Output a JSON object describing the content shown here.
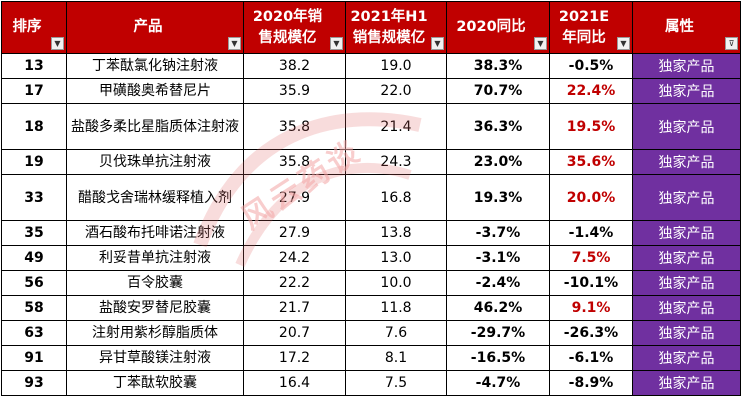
{
  "colors": {
    "header_bg": "#c00000",
    "attr_bg": "#7030a0",
    "negative_red": "#c00000"
  },
  "headers": {
    "rank": "排序",
    "product": "产品",
    "sales2020": "2020年销售规模亿",
    "sales2021h1": "2021年H1销售规模亿",
    "yoy2020": "2020同比",
    "yoy2021e": "2021E年同比",
    "attribute": "属性"
  },
  "watermark": {
    "text": "风云药谈"
  },
  "rows": [
    {
      "rank": "13",
      "product": "丁苯酞氯化钠注射液",
      "sales2020": "38.2",
      "sales2021h1": "19.0",
      "yoy2020": "38.3%",
      "yoy2021e": "-0.5%",
      "attribute": "独家产品"
    },
    {
      "rank": "17",
      "product": "甲磺酸奥希替尼片",
      "sales2020": "35.9",
      "sales2021h1": "22.0",
      "yoy2020": "70.7%",
      "yoy2021e": "22.4%",
      "attribute": "独家产品"
    },
    {
      "rank": "18",
      "product": "盐酸多柔比星脂质体注射液",
      "sales2020": "35.8",
      "sales2021h1": "21.4",
      "yoy2020": "36.3%",
      "yoy2021e": "19.5%",
      "attribute": "独家产品"
    },
    {
      "rank": "19",
      "product": "贝伐珠单抗注射液",
      "sales2020": "35.8",
      "sales2021h1": "24.3",
      "yoy2020": "23.0%",
      "yoy2021e": "35.6%",
      "attribute": "独家产品"
    },
    {
      "rank": "33",
      "product": "醋酸戈舍瑞林缓释植入剂",
      "sales2020": "27.9",
      "sales2021h1": "16.8",
      "yoy2020": "19.3%",
      "yoy2021e": "20.0%",
      "attribute": "独家产品"
    },
    {
      "rank": "35",
      "product": "酒石酸布托啡诺注射液",
      "sales2020": "27.9",
      "sales2021h1": "13.8",
      "yoy2020": "-3.7%",
      "yoy2021e": "-1.4%",
      "attribute": "独家产品"
    },
    {
      "rank": "49",
      "product": "利妥昔单抗注射液",
      "sales2020": "24.2",
      "sales2021h1": "13.0",
      "yoy2020": "-3.1%",
      "yoy2021e": "7.5%",
      "attribute": "独家产品"
    },
    {
      "rank": "56",
      "product": "百令胶囊",
      "sales2020": "22.2",
      "sales2021h1": "10.0",
      "yoy2020": "-2.4%",
      "yoy2021e": "-10.1%",
      "attribute": "独家产品"
    },
    {
      "rank": "58",
      "product": "盐酸安罗替尼胶囊",
      "sales2020": "21.7",
      "sales2021h1": "11.8",
      "yoy2020": "46.2%",
      "yoy2021e": "9.1%",
      "attribute": "独家产品"
    },
    {
      "rank": "63",
      "product": "注射用紫杉醇脂质体",
      "sales2020": "20.7",
      "sales2021h1": "7.6",
      "yoy2020": "-29.7%",
      "yoy2021e": "-26.3%",
      "attribute": "独家产品"
    },
    {
      "rank": "91",
      "product": "异甘草酸镁注射液",
      "sales2020": "17.2",
      "sales2021h1": "8.1",
      "yoy2020": "-16.5%",
      "yoy2021e": "-6.1%",
      "attribute": "独家产品"
    },
    {
      "rank": "93",
      "product": "丁苯酞软胶囊",
      "sales2020": "16.4",
      "sales2021h1": "7.5",
      "yoy2020": "-4.7%",
      "yoy2021e": "-8.9%",
      "attribute": "独家产品"
    }
  ]
}
